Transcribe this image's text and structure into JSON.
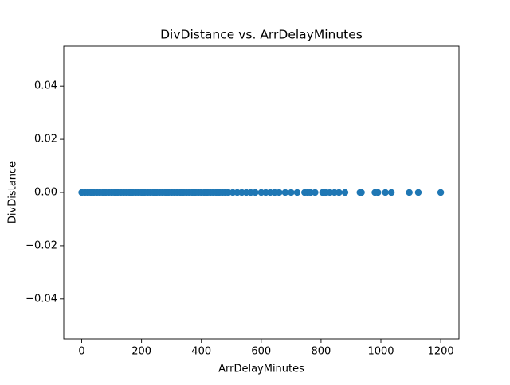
{
  "chart_data": {
    "type": "scatter",
    "title": "DivDistance vs. ArrDelayMinutes",
    "xlabel": "ArrDelayMinutes",
    "ylabel": "DivDistance",
    "color": "#1f77b4",
    "x": [
      0,
      10,
      20,
      30,
      40,
      50,
      60,
      70,
      80,
      90,
      100,
      110,
      120,
      130,
      140,
      150,
      160,
      170,
      180,
      190,
      200,
      210,
      220,
      230,
      240,
      250,
      260,
      270,
      280,
      290,
      300,
      310,
      320,
      330,
      340,
      350,
      360,
      370,
      380,
      390,
      400,
      410,
      420,
      430,
      440,
      450,
      460,
      470,
      480,
      490,
      505,
      520,
      535,
      550,
      565,
      580,
      600,
      615,
      630,
      645,
      660,
      680,
      700,
      720,
      745,
      755,
      765,
      780,
      805,
      815,
      830,
      845,
      860,
      880,
      930,
      935,
      980,
      990,
      1015,
      1035,
      1095,
      1125,
      1200
    ],
    "y": [
      0,
      0,
      0,
      0,
      0,
      0,
      0,
      0,
      0,
      0,
      0,
      0,
      0,
      0,
      0,
      0,
      0,
      0,
      0,
      0,
      0,
      0,
      0,
      0,
      0,
      0,
      0,
      0,
      0,
      0,
      0,
      0,
      0,
      0,
      0,
      0,
      0,
      0,
      0,
      0,
      0,
      0,
      0,
      0,
      0,
      0,
      0,
      0,
      0,
      0,
      0,
      0,
      0,
      0,
      0,
      0,
      0,
      0,
      0,
      0,
      0,
      0,
      0,
      0,
      0,
      0,
      0,
      0,
      0,
      0,
      0,
      0,
      0,
      0,
      0,
      0,
      0,
      0,
      0,
      0,
      0,
      0,
      0
    ],
    "xlim": [
      -60,
      1261
    ],
    "xticks": [
      0,
      200,
      400,
      600,
      800,
      1000,
      1200
    ],
    "ylim": [
      -0.055,
      0.055
    ],
    "yticks": [
      {
        "value": -0.04,
        "label": "−0.04"
      },
      {
        "value": -0.02,
        "label": "−0.02"
      },
      {
        "value": 0,
        "label": "0.00"
      },
      0.02,
      0.04
    ]
  }
}
